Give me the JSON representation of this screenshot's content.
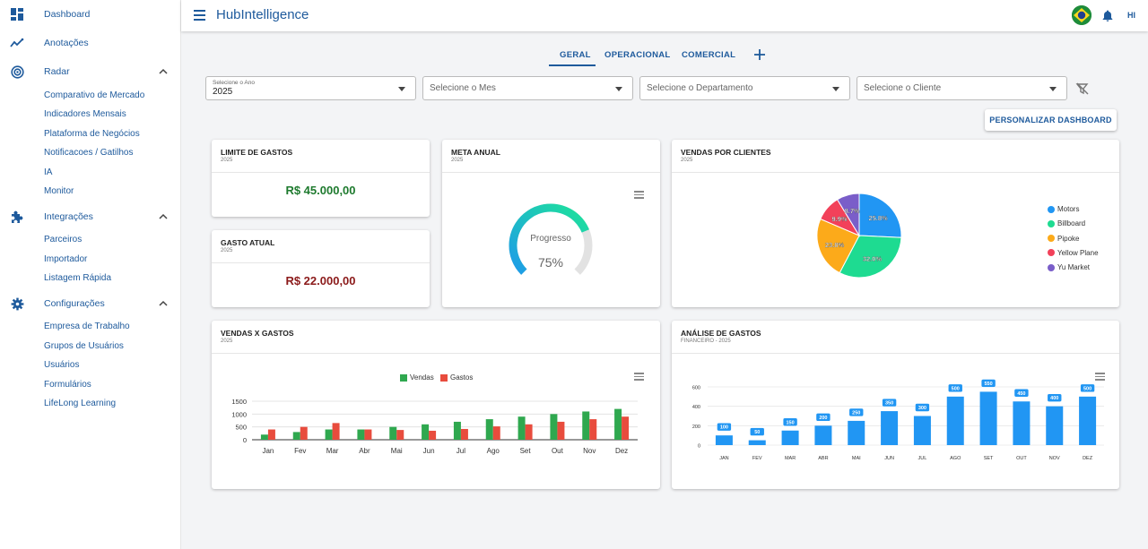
{
  "header": {
    "title": "HubIntelligence",
    "user_initials": "HI"
  },
  "sidebar": {
    "items": [
      {
        "label": "Dashboard",
        "icon": "dashboard-icon"
      },
      {
        "label": "Anotações",
        "icon": "trend-icon"
      },
      {
        "label": "Radar",
        "icon": "radar-icon",
        "expanded": true,
        "children": [
          "Comparativo de Mercado",
          "Indicadores Mensais",
          "Plataforma de Negócios",
          "Notificacoes / Gatilhos",
          "IA",
          "Monitor"
        ]
      },
      {
        "label": "Integrações",
        "icon": "puzzle-icon",
        "expanded": true,
        "children": [
          "Parceiros",
          "Importador",
          "Listagem Rápida"
        ]
      },
      {
        "label": "Configurações",
        "icon": "gear-icon",
        "expanded": true,
        "children": [
          "Empresa de Trabalho",
          "Grupos de Usuários",
          "Usuários",
          "Formulários",
          "LifeLong Learning"
        ]
      }
    ]
  },
  "tabs": [
    {
      "label": "GERAL",
      "active": true
    },
    {
      "label": "OPERACIONAL",
      "active": false
    },
    {
      "label": "COMERCIAL",
      "active": false
    }
  ],
  "filters": {
    "year": {
      "label": "Selecione o Ano",
      "value": "2025"
    },
    "month": {
      "placeholder": "Selecione o Mes"
    },
    "department": {
      "placeholder": "Selecione o Departamento"
    },
    "client": {
      "placeholder": "Selecione o Cliente"
    }
  },
  "customize_button": "PERSONALIZAR DASHBOARD",
  "cards": {
    "limite": {
      "title": "LIMITE DE GASTOS",
      "subtitle": "2025",
      "value": "R$ 45.000,00",
      "color": "#1e7a2e"
    },
    "gasto": {
      "title": "GASTO ATUAL",
      "subtitle": "2025",
      "value": "R$ 22.000,00",
      "color": "#8b1a1a"
    },
    "meta": {
      "title": "META ANUAL",
      "subtitle": "2025",
      "gauge_label": "Progresso",
      "gauge_value_text": "75%"
    },
    "vendas_clientes": {
      "title": "VENDAS POR CLIENTES",
      "subtitle": "2025"
    },
    "vendas_gastos": {
      "title": "VENDAS X GASTOS",
      "subtitle": "2025"
    },
    "analise": {
      "title": "ANÁLISE DE GASTOS",
      "subtitle": "FINANCEIRO - 2025"
    }
  },
  "chart_data": [
    {
      "id": "meta-gauge",
      "type": "gauge",
      "value": 75,
      "max": 100,
      "colors": {
        "fill_start": "#1e9be9",
        "fill_end": "#1ee39a",
        "track": "#e2e2e2"
      }
    },
    {
      "id": "pie",
      "type": "pie",
      "categories": [
        "Motors",
        "Billboard",
        "Pipoke",
        "Yellow Plane",
        "Yu Market"
      ],
      "values": [
        25.8,
        32.0,
        23.8,
        9.9,
        8.7
      ],
      "labels": [
        "25.8%",
        "32.0%",
        "23.8%",
        "9.9%",
        "8.7%"
      ],
      "colors": [
        "#2196f3",
        "#1edb91",
        "#fcaa1a",
        "#f2415a",
        "#7a5ec9"
      ],
      "legend": "right"
    },
    {
      "id": "vendas-gastos",
      "type": "bar",
      "categories": [
        "Jan",
        "Fev",
        "Mar",
        "Abr",
        "Mai",
        "Jun",
        "Jul",
        "Ago",
        "Set",
        "Out",
        "Nov",
        "Dez"
      ],
      "series": [
        {
          "name": "Vendas",
          "color": "#2fa84f",
          "values": [
            200,
            300,
            400,
            400,
            500,
            600,
            700,
            800,
            900,
            1000,
            1100,
            1200
          ]
        },
        {
          "name": "Gastos",
          "color": "#e84c3d",
          "values": [
            400,
            500,
            650,
            400,
            380,
            350,
            420,
            520,
            600,
            700,
            800,
            900
          ]
        }
      ],
      "yticks": [
        0,
        500,
        1000,
        1500
      ],
      "ylim": [
        0,
        1500
      ],
      "legend": "top-center"
    },
    {
      "id": "analise-gastos",
      "type": "bar",
      "categories": [
        "JAN",
        "FEV",
        "MAR",
        "ABR",
        "MAI",
        "JUN",
        "JUL",
        "AGO",
        "SET",
        "OUT",
        "NOV",
        "DEZ"
      ],
      "values": [
        100,
        50,
        150,
        200,
        250,
        350,
        300,
        500,
        550,
        450,
        400,
        500
      ],
      "yticks": [
        0,
        200,
        400,
        600
      ],
      "ylim": [
        0,
        600
      ],
      "color": "#2196f3",
      "data_labels": true
    }
  ]
}
